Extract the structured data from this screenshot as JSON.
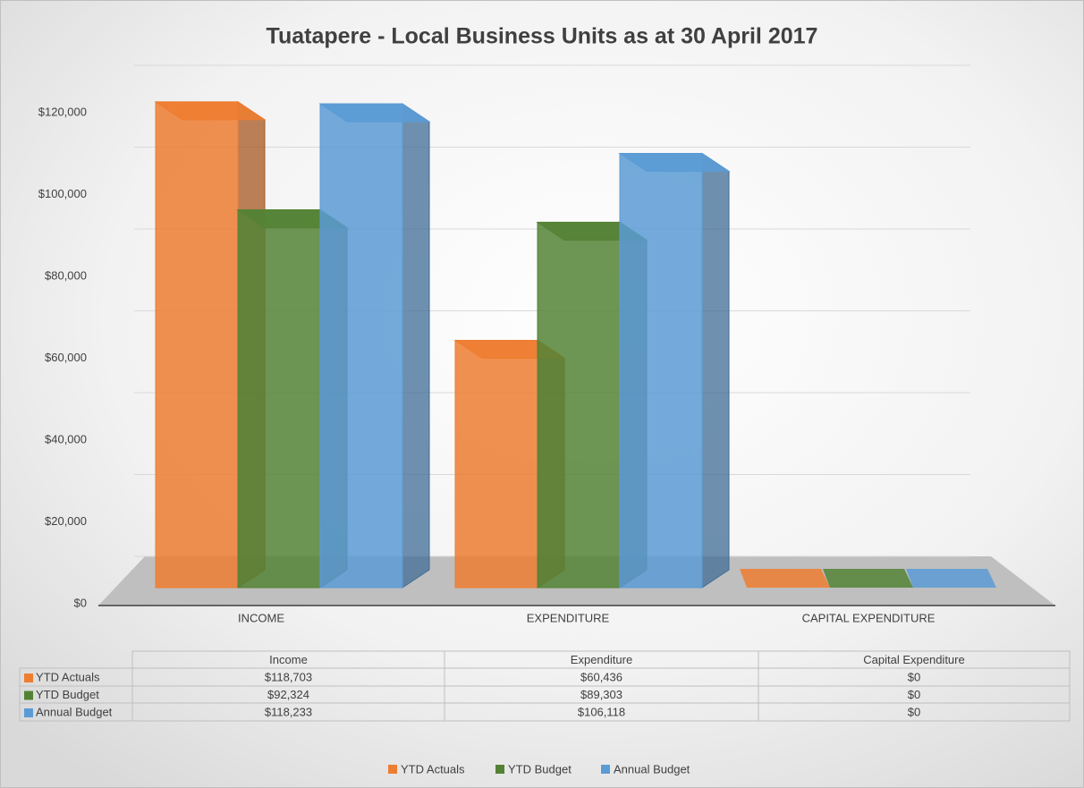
{
  "chart_data": {
    "type": "bar",
    "title": "Tuatapere - Local Business Units as at 30 April 2017",
    "categories": [
      "INCOME",
      "EXPENDITURE",
      "CAPITAL EXPENDITURE"
    ],
    "table_columns": [
      "Income",
      "Expenditure",
      "Capital Expenditure"
    ],
    "series": [
      {
        "name": "YTD Actuals",
        "color": "#ed7d31",
        "values": [
          118703,
          60436,
          0
        ],
        "value_labels": [
          "$118,703",
          "$60,436",
          "$0"
        ]
      },
      {
        "name": "YTD Budget",
        "color": "#548235",
        "values": [
          92324,
          89303,
          0
        ],
        "value_labels": [
          "$92,324",
          "$89,303",
          "$0"
        ]
      },
      {
        "name": "Annual Budget",
        "color": "#5b9bd5",
        "values": [
          118233,
          106118,
          0
        ],
        "value_labels": [
          "$118,233",
          "$106,118",
          "$0"
        ]
      }
    ],
    "ylim": [
      0,
      120000
    ],
    "yticks": [
      {
        "value": 0,
        "label": "$0"
      },
      {
        "value": 20000,
        "label": "$20,000"
      },
      {
        "value": 40000,
        "label": "$40,000"
      },
      {
        "value": 60000,
        "label": "$60,000"
      },
      {
        "value": 80000,
        "label": "$80,000"
      },
      {
        "value": 100000,
        "label": "$100,000"
      },
      {
        "value": 120000,
        "label": "$120,000"
      }
    ],
    "grid": true,
    "legend": "bottom"
  }
}
